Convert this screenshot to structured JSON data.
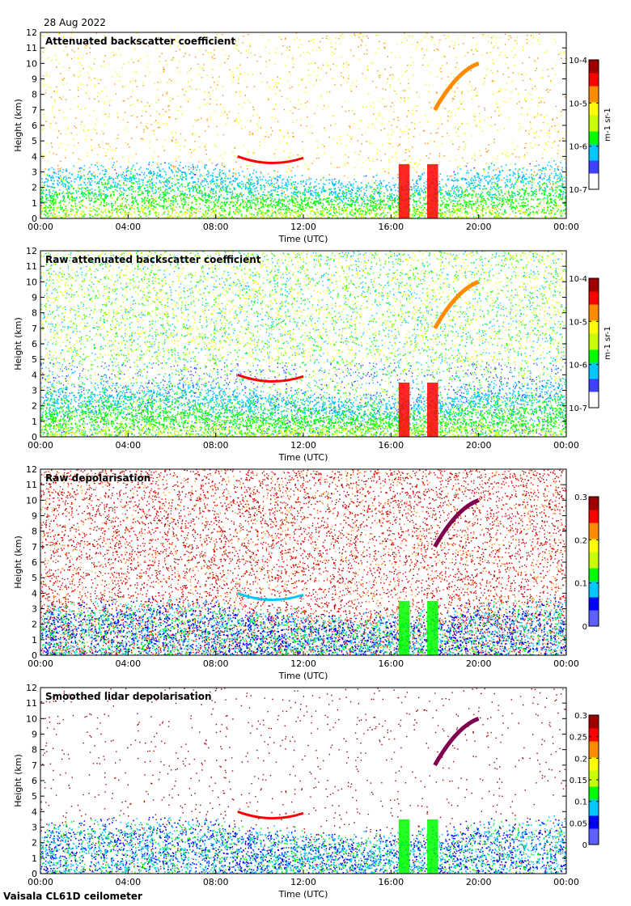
{
  "date_label": "28 Aug 2022",
  "footer": "Vaisala CL61D ceilometer",
  "chart_data": [
    {
      "type": "heatmap",
      "title": "Attenuated backscatter coefficient",
      "xlabel": "Time (UTC)",
      "ylabel": "Height (km)",
      "x_ticks": [
        "00:00",
        "04:00",
        "08:00",
        "12:00",
        "16:00",
        "20:00",
        "00:00"
      ],
      "y_ticks": [
        "0",
        "1",
        "2",
        "3",
        "4",
        "5",
        "6",
        "7",
        "8",
        "9",
        "10",
        "11",
        "12"
      ],
      "ylim": [
        0,
        12
      ],
      "colorbar": {
        "scale": "log",
        "ticks": [
          "10-7",
          "10-6",
          "10-5",
          "10-4"
        ],
        "unit": "m-1 sr-1"
      },
      "colormap": [
        "#ffffff",
        "#ffffff",
        "#4040ff",
        "#00c8ff",
        "#00ff00",
        "#c8ff00",
        "#ffff00",
        "#ff8c00",
        "#ff0000",
        "#a00000",
        "#800040"
      ],
      "background_noise": 0.25,
      "signal_mode": "plain"
    },
    {
      "type": "heatmap",
      "title": "Raw attenuated backscatter coefficient",
      "xlabel": "Time (UTC)",
      "ylabel": "Height (km)",
      "x_ticks": [
        "00:00",
        "04:00",
        "08:00",
        "12:00",
        "16:00",
        "20:00",
        "00:00"
      ],
      "y_ticks": [
        "0",
        "1",
        "2",
        "3",
        "4",
        "5",
        "6",
        "7",
        "8",
        "9",
        "10",
        "11",
        "12"
      ],
      "ylim": [
        0,
        12
      ],
      "colorbar": {
        "scale": "log",
        "ticks": [
          "10-7",
          "10-6",
          "10-5",
          "10-4"
        ],
        "unit": "m-1 sr-1"
      },
      "colormap": [
        "#ffffff",
        "#ffffff",
        "#4040ff",
        "#00c8ff",
        "#00ff00",
        "#c8ff00",
        "#ffff00",
        "#ff8c00",
        "#ff0000",
        "#a00000",
        "#800040"
      ],
      "background_noise": 1.0,
      "signal_mode": "raw"
    },
    {
      "type": "heatmap",
      "title": "Raw depolarisation",
      "xlabel": "Time (UTC)",
      "ylabel": "Height (km)",
      "x_ticks": [
        "00:00",
        "04:00",
        "08:00",
        "12:00",
        "16:00",
        "20:00",
        "00:00"
      ],
      "y_ticks": [
        "0",
        "1",
        "2",
        "3",
        "4",
        "5",
        "6",
        "7",
        "8",
        "9",
        "10",
        "11",
        "12"
      ],
      "ylim": [
        0,
        12
      ],
      "colorbar": {
        "scale": "linear",
        "ticks": [
          "0",
          "0.1",
          "0.2",
          "0.3"
        ],
        "range": [
          0,
          0.3
        ]
      },
      "colormap": [
        "#ffffff",
        "#6060ff",
        "#0000ff",
        "#00c8ff",
        "#00ff00",
        "#c8ff00",
        "#ffff00",
        "#ff8c00",
        "#ff0000",
        "#a00000",
        "#800050"
      ],
      "background_noise": 1.0,
      "signal_mode": "depol"
    },
    {
      "type": "heatmap",
      "title": "Smoothed lidar depolarisation",
      "xlabel": "Time (UTC)",
      "ylabel": "Height (km)",
      "x_ticks": [
        "00:00",
        "04:00",
        "08:00",
        "12:00",
        "16:00",
        "20:00",
        "00:00"
      ],
      "y_ticks": [
        "0",
        "1",
        "2",
        "3",
        "4",
        "5",
        "6",
        "7",
        "8",
        "9",
        "10",
        "11",
        "12"
      ],
      "ylim": [
        0,
        12
      ],
      "colorbar": {
        "scale": "linear",
        "ticks": [
          "0",
          "0.05",
          "0.1",
          "0.15",
          "0.2",
          "0.25",
          "0.3"
        ],
        "range": [
          0,
          0.3
        ]
      },
      "colormap": [
        "#ffffff",
        "#6060ff",
        "#0000ff",
        "#00c8ff",
        "#00ff00",
        "#c8ff00",
        "#ffff00",
        "#ff8c00",
        "#ff0000",
        "#a00000",
        "#800050"
      ],
      "background_noise": 0.12,
      "signal_mode": "smooth"
    }
  ]
}
